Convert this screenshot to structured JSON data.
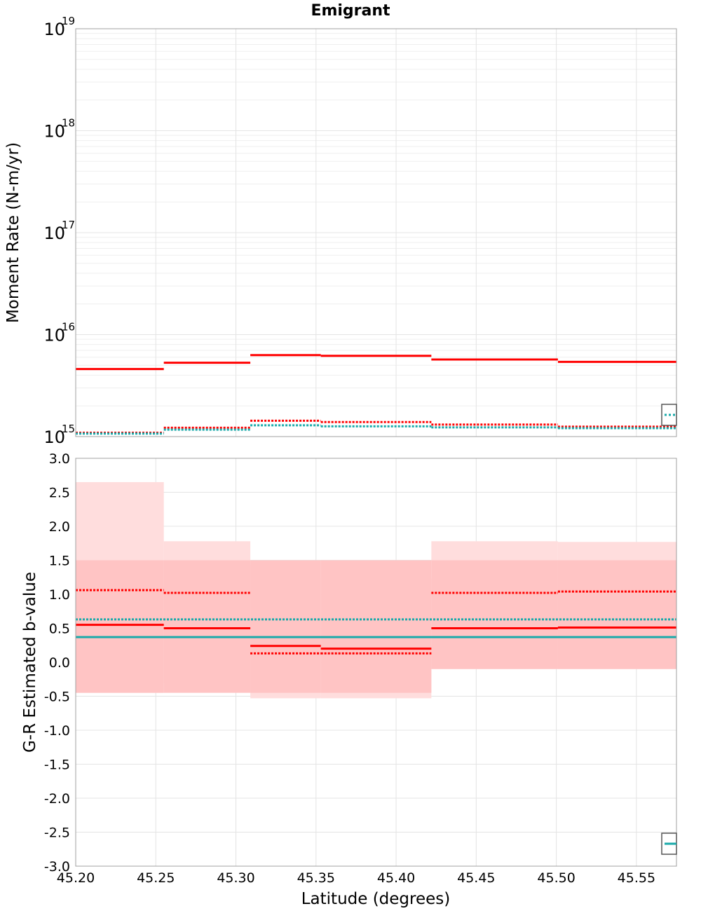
{
  "title": "Emigrant",
  "colors": {
    "red": "#ff0000",
    "teal": "#1aaaaa",
    "band_outer": "#ffdddd",
    "band_inner": "#ffc4c4"
  },
  "chart_data": [
    {
      "type": "line",
      "name": "moment-rate",
      "title": "Emigrant",
      "ylabel": "Moment Rate (N-m/yr)",
      "xlabel": "",
      "yscale": "log",
      "xlim": [
        45.2,
        45.575
      ],
      "ylim": [
        1000000000000000.0,
        1e+19
      ],
      "y_tick_labels": [
        {
          "base": "10",
          "exp": "15",
          "value": 1000000000000000.0
        },
        {
          "base": "10",
          "exp": "16",
          "value": 1e+16
        },
        {
          "base": "10",
          "exp": "17",
          "value": 1e+17
        },
        {
          "base": "10",
          "exp": "18",
          "value": 1e+18
        },
        {
          "base": "10",
          "exp": "19",
          "value": 1e+19
        }
      ],
      "x_bins": [
        45.2,
        45.255,
        45.309,
        45.353,
        45.422,
        45.501,
        45.575
      ],
      "series": [
        {
          "name": "moment-red-solid",
          "color": "#ff0000",
          "style": "solid",
          "values": [
            4600000000000000.0,
            5300000000000000.0,
            6300000000000000.0,
            6200000000000000.0,
            5700000000000000.0,
            5400000000000000.0
          ]
        },
        {
          "name": "moment-red-dotted",
          "color": "#ff0000",
          "style": "dotted",
          "values": [
            1090000000000000.0,
            1220000000000000.0,
            1430000000000000.0,
            1390000000000000.0,
            1310000000000000.0,
            1250000000000000.0
          ]
        },
        {
          "name": "moment-teal-dotted",
          "color": "#1aaaaa",
          "style": "dotted",
          "values": [
            1070000000000000.0,
            1170000000000000.0,
            1290000000000000.0,
            1260000000000000.0,
            1230000000000000.0,
            1210000000000000.0
          ]
        }
      ]
    },
    {
      "type": "line",
      "name": "b-value",
      "title": "",
      "ylabel": "G-R Estimated b-value",
      "xlabel": "Latitude (degrees)",
      "xlim": [
        45.2,
        45.575
      ],
      "ylim": [
        -3.0,
        3.0
      ],
      "x_ticks": [
        "45.20",
        "45.25",
        "45.30",
        "45.35",
        "45.40",
        "45.45",
        "45.50",
        "45.55"
      ],
      "x_tick_values": [
        45.2,
        45.25,
        45.3,
        45.35,
        45.4,
        45.45,
        45.5,
        45.55
      ],
      "y_ticks": [
        "3.0",
        "2.5",
        "2.0",
        "1.5",
        "1.0",
        "0.5",
        "0.0",
        "-0.5",
        "-1.0",
        "-1.5",
        "-2.0",
        "-2.5",
        "-3.0"
      ],
      "y_tick_values": [
        3.0,
        2.5,
        2.0,
        1.5,
        1.0,
        0.5,
        0.0,
        -0.5,
        -1.0,
        -1.5,
        -2.0,
        -2.5,
        -3.0
      ],
      "x_bins": [
        45.2,
        45.255,
        45.309,
        45.353,
        45.422,
        45.501,
        45.575
      ],
      "band_outer": [
        [
          -0.45,
          2.65
        ],
        [
          -0.3,
          1.78
        ],
        [
          -0.53,
          1.43
        ],
        [
          -0.53,
          1.23
        ],
        [
          -0.1,
          1.78
        ],
        [
          -0.1,
          1.77
        ]
      ],
      "band_inner": [
        [
          -0.45,
          1.5
        ],
        [
          -0.45,
          1.5
        ],
        [
          -0.45,
          1.5
        ],
        [
          -0.45,
          1.5
        ],
        [
          -0.1,
          1.5
        ],
        [
          -0.1,
          1.5
        ]
      ],
      "series": [
        {
          "name": "b-red-solid",
          "color": "#ff0000",
          "style": "solid",
          "values": [
            0.55,
            0.5,
            0.24,
            0.2,
            0.5,
            0.51
          ]
        },
        {
          "name": "b-red-dotted",
          "color": "#ff0000",
          "style": "dotted",
          "values": [
            1.06,
            1.02,
            0.13,
            0.13,
            1.02,
            1.04
          ]
        },
        {
          "name": "b-teal-solid",
          "color": "#1aaaaa",
          "style": "solid",
          "constant": 0.37
        },
        {
          "name": "b-teal-dotted",
          "color": "#1aaaaa",
          "style": "dotted",
          "constant": 0.63
        }
      ]
    }
  ]
}
